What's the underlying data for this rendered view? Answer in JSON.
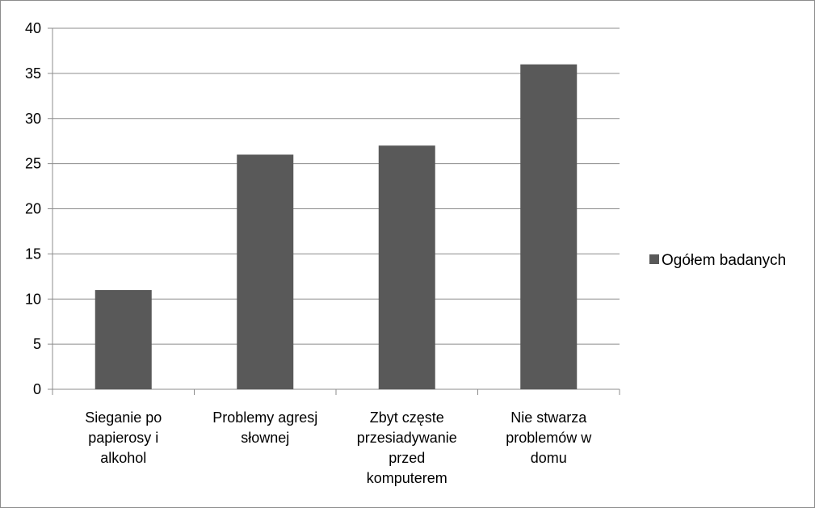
{
  "chart_data": {
    "type": "bar",
    "categories": [
      [
        "Sieganie po",
        "papierosy i",
        "alkohol"
      ],
      [
        "Problemy agresj",
        "słownej"
      ],
      [
        "Zbyt częste",
        "przesiadywanie",
        "przed",
        "komputerem"
      ],
      [
        "Nie stwarza",
        "problemów w",
        "domu"
      ]
    ],
    "series": [
      {
        "name": "Ogółem badanych",
        "values": [
          11,
          26,
          27,
          36
        ],
        "color": "#595959"
      }
    ],
    "ylim": [
      0,
      40
    ],
    "yticks": [
      0,
      5,
      10,
      15,
      20,
      25,
      30,
      35,
      40
    ],
    "grid": true,
    "legend_position": "right",
    "colors": {
      "bar": "#595959",
      "grid": "#8c8c8c",
      "axis": "#8c8c8c",
      "frame": "#8c8c8c"
    }
  }
}
